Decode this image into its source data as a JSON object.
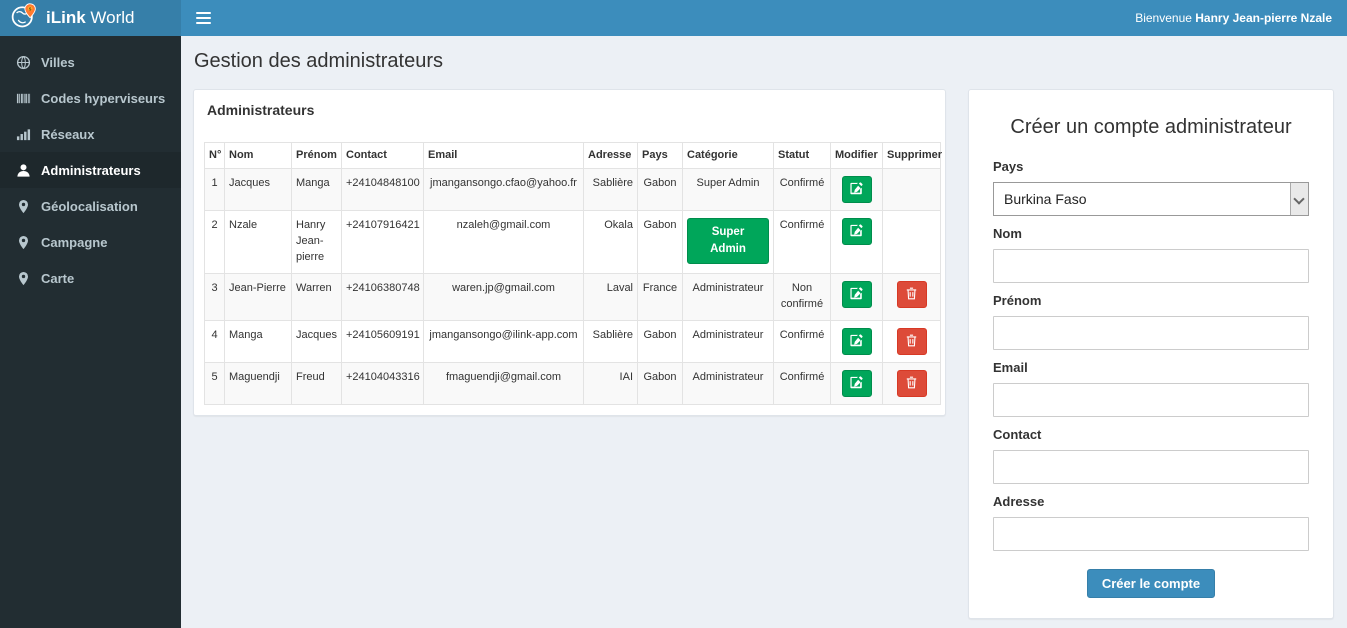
{
  "brand": {
    "bold": "iLink",
    "light": "World"
  },
  "navbar": {
    "welcome_prefix": "Bienvenue",
    "user_name": "Hanry Jean-pierre Nzale"
  },
  "sidebar": {
    "items": [
      {
        "name": "villes",
        "label": "Villes",
        "icon": "globe-icon",
        "active": false
      },
      {
        "name": "codes-hyperviseurs",
        "label": "Codes hyperviseurs",
        "icon": "barcode-icon",
        "active": false
      },
      {
        "name": "reseaux",
        "label": "Réseaux",
        "icon": "bar-chart-icon",
        "active": false
      },
      {
        "name": "administrateurs",
        "label": "Administrateurs",
        "icon": "user-icon",
        "active": true
      },
      {
        "name": "geolocalisation",
        "label": "Géolocalisation",
        "icon": "map-marker-icon",
        "active": false
      },
      {
        "name": "campagne",
        "label": "Campagne",
        "icon": "map-marker-icon",
        "active": false
      },
      {
        "name": "carte",
        "label": "Carte",
        "icon": "map-marker-icon",
        "active": false
      }
    ]
  },
  "page": {
    "title": "Gestion des administrateurs"
  },
  "admin_panel": {
    "title": "Administrateurs",
    "table": {
      "headers": [
        "N°",
        "Nom",
        "Prénom",
        "Contact",
        "Email",
        "Adresse",
        "Pays",
        "Catégorie",
        "Statut",
        "Modifier",
        "Supprimer"
      ],
      "edit_icon": "edit-pencil-icon",
      "delete_icon": "trash-icon",
      "rows": [
        {
          "num": "1",
          "nom": "Jacques",
          "prenom": "Manga",
          "contact": "+24104848100",
          "email": "jmangansongo.cfao@yahoo.fr",
          "adresse": "Sablière",
          "pays": "Gabon",
          "categorie": "Super Admin",
          "categorie_style": "text",
          "statut": "Confirmé",
          "can_delete": false
        },
        {
          "num": "2",
          "nom": "Nzale",
          "prenom": "Hanry Jean-pierre",
          "contact": "+24107916421",
          "email": "nzaleh@gmail.com",
          "adresse": "Okala",
          "pays": "Gabon",
          "categorie": "Super Admin",
          "categorie_style": "badge",
          "statut": "Confirmé",
          "can_delete": false
        },
        {
          "num": "3",
          "nom": "Jean-Pierre",
          "prenom": "Warren",
          "contact": "+24106380748",
          "email": "waren.jp@gmail.com",
          "adresse": "Laval",
          "pays": "France",
          "categorie": "Administrateur",
          "categorie_style": "text",
          "statut": "Non confirmé",
          "can_delete": true
        },
        {
          "num": "4",
          "nom": "Manga",
          "prenom": "Jacques",
          "contact": "+24105609191",
          "email": "jmangansongo@ilink-app.com",
          "adresse": "Sablière",
          "pays": "Gabon",
          "categorie": "Administrateur",
          "categorie_style": "text",
          "statut": "Confirmé",
          "can_delete": true
        },
        {
          "num": "5",
          "nom": "Maguendji",
          "prenom": "Freud",
          "contact": "+24104043316",
          "email": "fmaguendji@gmail.com",
          "adresse": "IAI",
          "pays": "Gabon",
          "categorie": "Administrateur",
          "categorie_style": "text",
          "statut": "Confirmé",
          "can_delete": true
        }
      ]
    }
  },
  "form_panel": {
    "title": "Créer un compte administrateur",
    "fields": [
      {
        "name": "pays-select",
        "label": "Pays",
        "type": "select",
        "value": "Burkina Faso"
      },
      {
        "name": "nom-input",
        "label": "Nom",
        "type": "input",
        "value": ""
      },
      {
        "name": "prenom-input",
        "label": "Prénom",
        "type": "input",
        "value": ""
      },
      {
        "name": "email-input",
        "label": "Email",
        "type": "input",
        "value": ""
      },
      {
        "name": "contact-input",
        "label": "Contact",
        "type": "input",
        "value": ""
      },
      {
        "name": "adresse-input",
        "label": "Adresse",
        "type": "input",
        "value": ""
      }
    ],
    "submit_label": "Créer le compte"
  },
  "colors": {
    "navbar": "#3c8dbc",
    "logo_bg": "#367fa9",
    "sidebar": "#222d32",
    "sidebar_active": "#1e282c",
    "success": "#00a65a",
    "danger": "#dd4b39",
    "content_bg": "#ecf0f5"
  }
}
